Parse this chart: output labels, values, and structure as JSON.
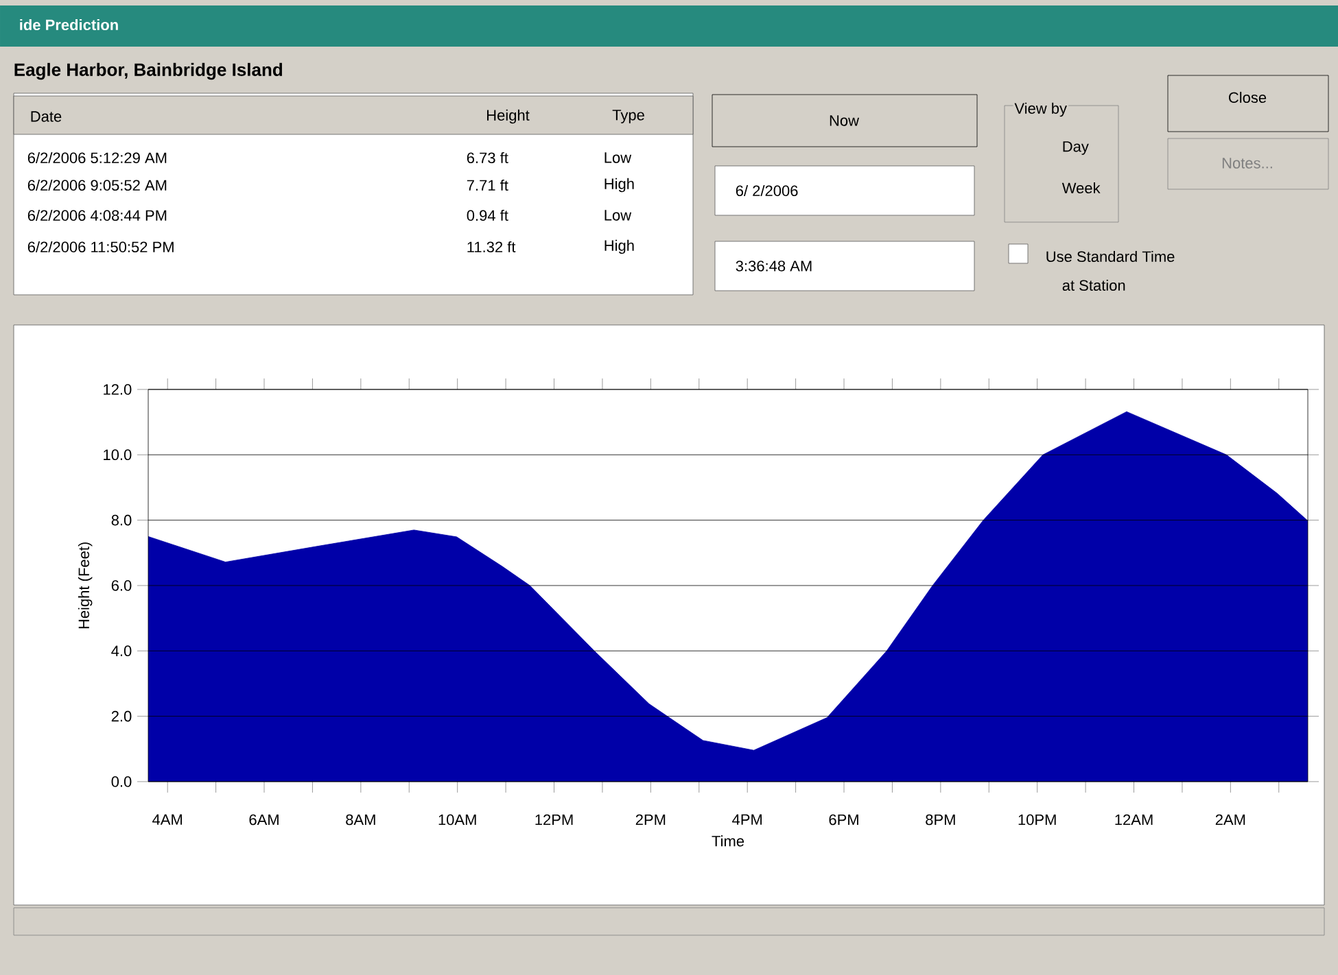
{
  "chart_data": {
    "type": "area",
    "title": "ide Prediction",
    "subtitle": "Eagle Harbor, Bainbridge Island",
    "xlabel": "Time",
    "ylabel": "Height (Feet)",
    "color": "#0000a8",
    "grid": "y",
    "x": [
      "2006-06-02T03:36",
      "2006-06-02T05:12",
      "2006-06-02T07:08",
      "2006-06-02T09:06",
      "2006-06-02T09:59",
      "2006-06-02T10:56",
      "2006-06-02T11:30",
      "2006-06-02T12:50",
      "2006-06-02T13:58",
      "2006-06-02T14:44",
      "2006-06-02T15:05",
      "2006-06-02T16:08",
      "2006-06-02T17:39",
      "2006-06-02T18:53",
      "2006-06-02T19:50",
      "2006-06-02T20:53",
      "2006-06-02T22:07",
      "2006-06-02T23:51",
      "2006-06-03T01:55",
      "2006-06-03T02:58",
      "2006-06-03T03:36"
    ],
    "values": [
      7.5,
      6.72,
      7.21,
      7.7,
      7.49,
      6.58,
      6.0,
      4.0,
      2.38,
      1.61,
      1.26,
      0.96,
      1.96,
      4.0,
      6.0,
      8.0,
      10.0,
      11.32,
      10.0,
      8.82,
      7.98
    ],
    "xlim": [
      "2006-06-02T03:36",
      "2006-06-03T03:36"
    ],
    "ylim": [
      0,
      12
    ],
    "xticks": [
      {
        "value": "2006-06-02T04:00",
        "label": "4AM"
      },
      {
        "value": "2006-06-02T05:00",
        "label": null
      },
      {
        "value": "2006-06-02T06:00",
        "label": "6AM"
      },
      {
        "value": "2006-06-02T07:00",
        "label": null
      },
      {
        "value": "2006-06-02T08:00",
        "label": "8AM"
      },
      {
        "value": "2006-06-02T09:00",
        "label": null
      },
      {
        "value": "2006-06-02T10:00",
        "label": "10AM"
      },
      {
        "value": "2006-06-02T11:00",
        "label": null
      },
      {
        "value": "2006-06-02T12:00",
        "label": "12PM"
      },
      {
        "value": "2006-06-02T13:00",
        "label": null
      },
      {
        "value": "2006-06-02T14:00",
        "label": "2PM"
      },
      {
        "value": "2006-06-02T15:00",
        "label": null
      },
      {
        "value": "2006-06-02T16:00",
        "label": "4PM"
      },
      {
        "value": "2006-06-02T17:00",
        "label": null
      },
      {
        "value": "2006-06-02T18:00",
        "label": "6PM"
      },
      {
        "value": "2006-06-02T19:00",
        "label": null
      },
      {
        "value": "2006-06-02T20:00",
        "label": "8PM"
      },
      {
        "value": "2006-06-02T21:00",
        "label": null
      },
      {
        "value": "2006-06-02T22:00",
        "label": "10PM"
      },
      {
        "value": "2006-06-02T23:00",
        "label": null
      },
      {
        "value": "2006-06-03T00:00",
        "label": "12AM"
      },
      {
        "value": "2006-06-03T01:00",
        "label": null
      },
      {
        "value": "2006-06-03T02:00",
        "label": "2AM"
      },
      {
        "value": "2006-06-03T03:00",
        "label": null
      }
    ],
    "yticks": [
      {
        "value": 0,
        "label": "0.0"
      },
      {
        "value": 2,
        "label": "2.0"
      },
      {
        "value": 4,
        "label": "4.0"
      },
      {
        "value": 6,
        "label": "6.0"
      },
      {
        "value": 8,
        "label": "8.0"
      },
      {
        "value": 10,
        "label": "10.0"
      },
      {
        "value": 12,
        "label": "12.0"
      }
    ],
    "annotations": [
      "Date",
      "Height",
      "Type",
      "6/2/2006 5:12:29 AM",
      "6.73 ft",
      "Low",
      "6/2/2006 9:05:52 AM",
      "7.71 ft",
      "High",
      "6/2/2006 4:08:44 PM",
      "0.94 ft",
      "Low",
      "6/2/2006 11:50:52 PM",
      "11.32 ft",
      "High",
      "Now",
      "6/ 2/2006",
      "3:36:48 AM",
      "View by",
      "Day",
      "Week",
      "Use Standard Time",
      "at Station",
      "Close",
      "Notes..."
    ]
  }
}
